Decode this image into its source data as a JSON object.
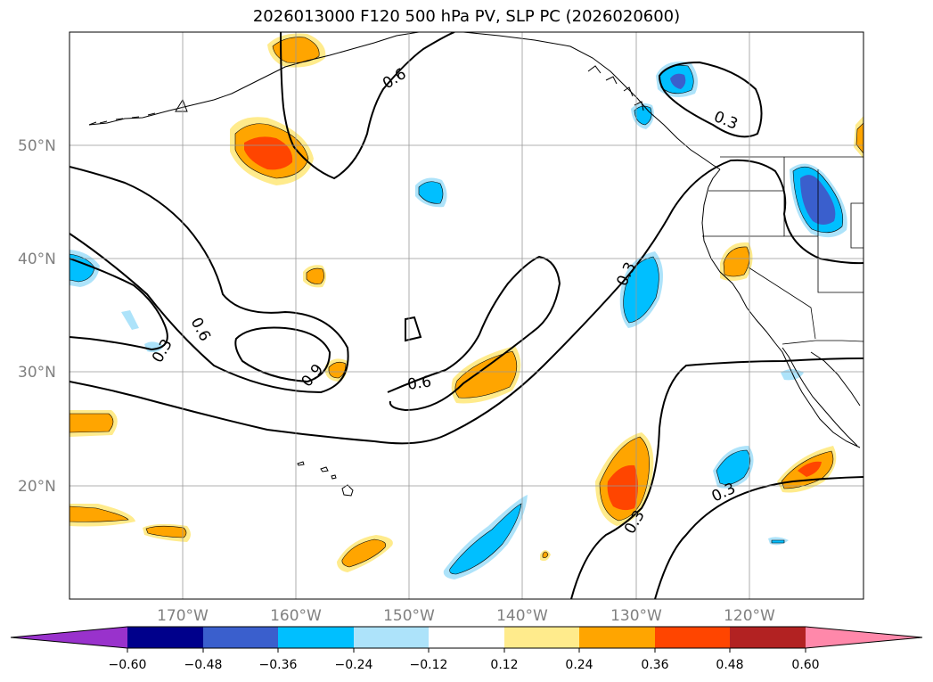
{
  "title": "2026013000 F120 500 hPa PV, SLP PC (2026020600)",
  "lat_labels": [
    "50°N",
    "40°N",
    "30°N",
    "20°N"
  ],
  "lon_labels": [
    "170°W",
    "160°W",
    "150°W",
    "140°W",
    "130°W",
    "120°W"
  ],
  "contour_labels": [
    "0.6",
    "0.3",
    "0.6",
    "0.9",
    "0.3",
    "0.6",
    "0.3",
    "0.3",
    "0.3"
  ],
  "colorbar": {
    "tick_labels": [
      "−0.60",
      "−0.48",
      "−0.36",
      "−0.24",
      "−0.12",
      "0.12",
      "0.24",
      "0.36",
      "0.48",
      "0.60"
    ],
    "colors": [
      "#9932CC",
      "#00008B",
      "#3A5FCD",
      "#00BFFF",
      "#ADE3FA",
      "#FFFFFF",
      "#FFEB8C",
      "#FFA500",
      "#FF4500",
      "#B22222",
      "#FF88AA"
    ]
  },
  "fill_colors": {
    "pos1": "#FFEB8C",
    "pos2": "#FFA500",
    "pos3": "#FF4500",
    "neg1": "#ADE3FA",
    "neg2": "#00BFFF",
    "neg3": "#3A5FCD"
  }
}
